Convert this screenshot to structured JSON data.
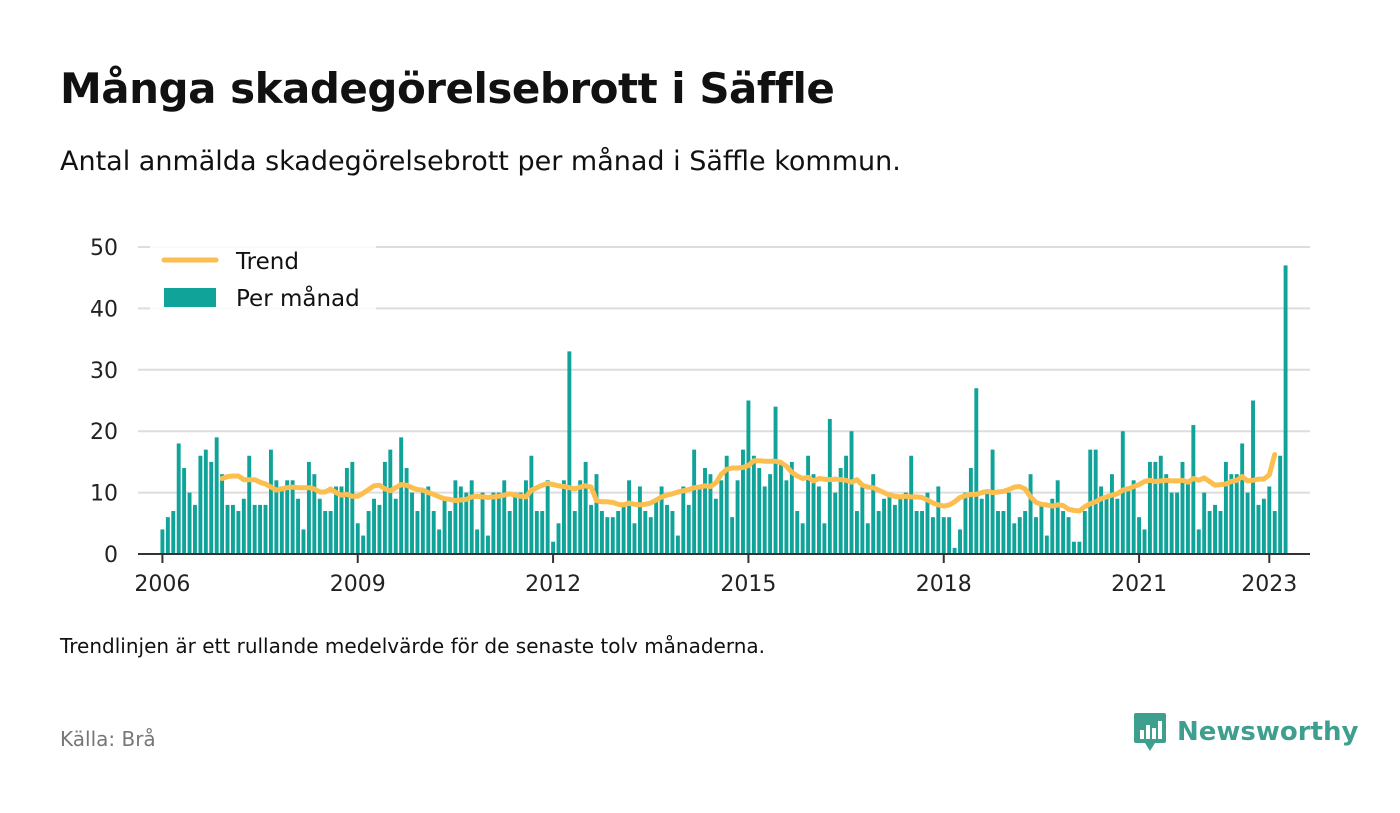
{
  "title": "Många skadegörelsebrott i Säffle",
  "subtitle": "Antal anmälda skadegörelsebrott per månad i Säffle kommun.",
  "note": "Trendlinjen är ett rullande medelvärde för de senaste tolv månaderna.",
  "source": "Källa: Brå",
  "brand": {
    "name": "Newsworthy",
    "icon": "newsworthy-logo-icon"
  },
  "colors": {
    "bars": "#0fa399",
    "trend": "#fbbe4f",
    "grid": "#dddddd",
    "axis": "#333333"
  },
  "chart_data": {
    "type": "bar",
    "x_start": "2006-01",
    "x_end": "2023-04",
    "xticks": [
      "2006",
      "2009",
      "2012",
      "2015",
      "2018",
      "2021",
      "2023"
    ],
    "yticks": [
      "0",
      "10",
      "20",
      "30",
      "40",
      "50"
    ],
    "ylim": [
      0,
      50
    ],
    "grid": true,
    "legend_position": "top-left",
    "series": [
      {
        "name": "Per månad",
        "type": "bar",
        "values": [
          4,
          6,
          7,
          18,
          14,
          10,
          8,
          16,
          17,
          15,
          19,
          13,
          8,
          8,
          7,
          9,
          16,
          8,
          8,
          8,
          17,
          12,
          11,
          12,
          12,
          9,
          4,
          15,
          13,
          9,
          7,
          7,
          11,
          11,
          14,
          15,
          5,
          3,
          7,
          9,
          8,
          15,
          17,
          9,
          19,
          14,
          10,
          7,
          10,
          11,
          7,
          4,
          9,
          7,
          12,
          11,
          10,
          12,
          4,
          10,
          3,
          10,
          10,
          12,
          7,
          10,
          10,
          12,
          16,
          7,
          7,
          12,
          2,
          5,
          12,
          33,
          7,
          12,
          15,
          8,
          13,
          7,
          6,
          6,
          7,
          8,
          12,
          5,
          11,
          7,
          6,
          9,
          11,
          8,
          7,
          3,
          11,
          8,
          17,
          11,
          14,
          13,
          9,
          12,
          16,
          6,
          12,
          17,
          25,
          16,
          14,
          11,
          13,
          24,
          15,
          12,
          15,
          7,
          5,
          16,
          13,
          11,
          5,
          22,
          10,
          14,
          16,
          20,
          7,
          11,
          5,
          13,
          7,
          9,
          10,
          8,
          9,
          10,
          16,
          7,
          7,
          10,
          6,
          11,
          6,
          6,
          1,
          4,
          10,
          14,
          27,
          9,
          10,
          17,
          7,
          7,
          10,
          5,
          6,
          7,
          13,
          6,
          8,
          3,
          9,
          12,
          7,
          6,
          2,
          2,
          7,
          17,
          17,
          11,
          9,
          13,
          9,
          20,
          11,
          12,
          6,
          4,
          15,
          15,
          16,
          13,
          10,
          10,
          15,
          12,
          21,
          4,
          10,
          7,
          8,
          7,
          15,
          13,
          13,
          18,
          10,
          25,
          8,
          9,
          11,
          7,
          16,
          47
        ]
      },
      {
        "name": "Trend",
        "type": "line",
        "start": "2006-12",
        "values": [
          12.3,
          12.6,
          12.7,
          12.7,
          12.1,
          12.1,
          12.1,
          11.7,
          11.4,
          10.9,
          10.4,
          10.6,
          10.8,
          10.9,
          10.8,
          10.8,
          10.8,
          10.6,
          10.1,
          10.1,
          10.6,
          10.0,
          9.6,
          9.7,
          9.4,
          9.4,
          9.9,
          10.5,
          11.1,
          11.2,
          10.6,
          10.3,
          10.8,
          11.3,
          11.2,
          10.8,
          10.5,
          10.4,
          10.0,
          9.7,
          9.3,
          9.0,
          8.9,
          8.7,
          8.8,
          8.9,
          9.3,
          9.4,
          9.3,
          9.2,
          9.3,
          9.4,
          9.6,
          9.8,
          9.6,
          9.4,
          9.3,
          10.4,
          10.8,
          11.2,
          11.5,
          11.3,
          11.1,
          11.0,
          10.8,
          10.6,
          10.9,
          11.1,
          10.9,
          8.7,
          8.5,
          8.5,
          8.4,
          8.1,
          8.0,
          8.3,
          8.1,
          8.0,
          8.1,
          8.3,
          8.8,
          9.3,
          9.6,
          9.8,
          10.1,
          10.3,
          10.5,
          10.8,
          10.9,
          11.1,
          11.0,
          11.6,
          13.0,
          13.8,
          14.0,
          14.0,
          14.1,
          14.4,
          15.2,
          15.2,
          15.1,
          15.1,
          15.1,
          14.9,
          14.3,
          13.3,
          12.7,
          12.3,
          12.5,
          11.9,
          12.3,
          12.2,
          12.1,
          12.2,
          12.1,
          12.0,
          11.7,
          12.1,
          11.2,
          10.9,
          10.8,
          10.4,
          10.0,
          9.6,
          9.4,
          9.3,
          9.4,
          9.3,
          9.3,
          9.2,
          8.8,
          8.3,
          8.0,
          7.8,
          8.0,
          8.5,
          9.2,
          9.5,
          9.7,
          9.7,
          10.0,
          10.2,
          10.0,
          10.1,
          10.2,
          10.5,
          10.9,
          11.0,
          10.6,
          9.3,
          8.4,
          8.1,
          8.0,
          7.8,
          8.0,
          7.9,
          7.3,
          7.1,
          7.0,
          7.7,
          8.2,
          8.5,
          9.0,
          9.3,
          9.6,
          9.8,
          10.4,
          10.6,
          11.0,
          11.3,
          11.8,
          12.0,
          11.8,
          11.9,
          12.0,
          11.9,
          11.9,
          12.0,
          11.7,
          12.3,
          12.0,
          12.4,
          11.8,
          11.2,
          11.3,
          11.4,
          11.8,
          12.0,
          12.6,
          11.9,
          12.0,
          12.2,
          12.2,
          12.9,
          16.2
        ]
      }
    ]
  }
}
